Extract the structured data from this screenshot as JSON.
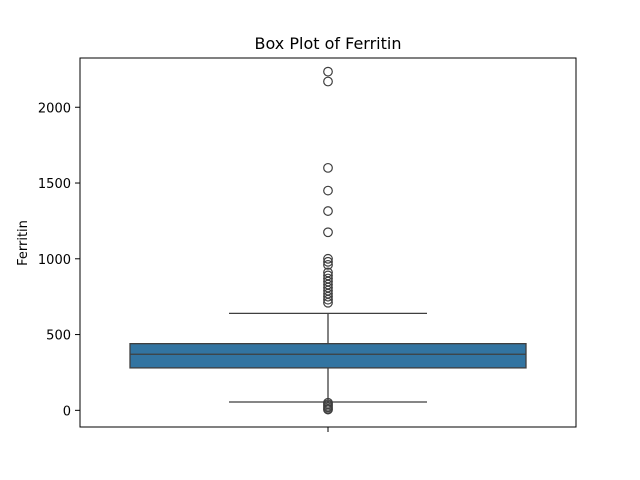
{
  "chart_data": {
    "type": "box",
    "title": "Box Plot of Ferritin",
    "xlabel": "",
    "ylabel": "Ferritin",
    "ylim": [
      -110,
      2325
    ],
    "yticks": [
      0,
      500,
      1000,
      1500,
      2000
    ],
    "box_color": "#3274a1",
    "line_color": "#3f3f3f",
    "box": {
      "whisker_low": 55,
      "q1": 280,
      "median": 370,
      "q3": 440,
      "whisker_high": 640
    },
    "outliers": [
      2235,
      2170,
      1600,
      1450,
      1315,
      1175,
      1000,
      980,
      960,
      910,
      890,
      870,
      850,
      830,
      810,
      790,
      770,
      750,
      730,
      710,
      50,
      40,
      30,
      20,
      10,
      5
    ]
  }
}
